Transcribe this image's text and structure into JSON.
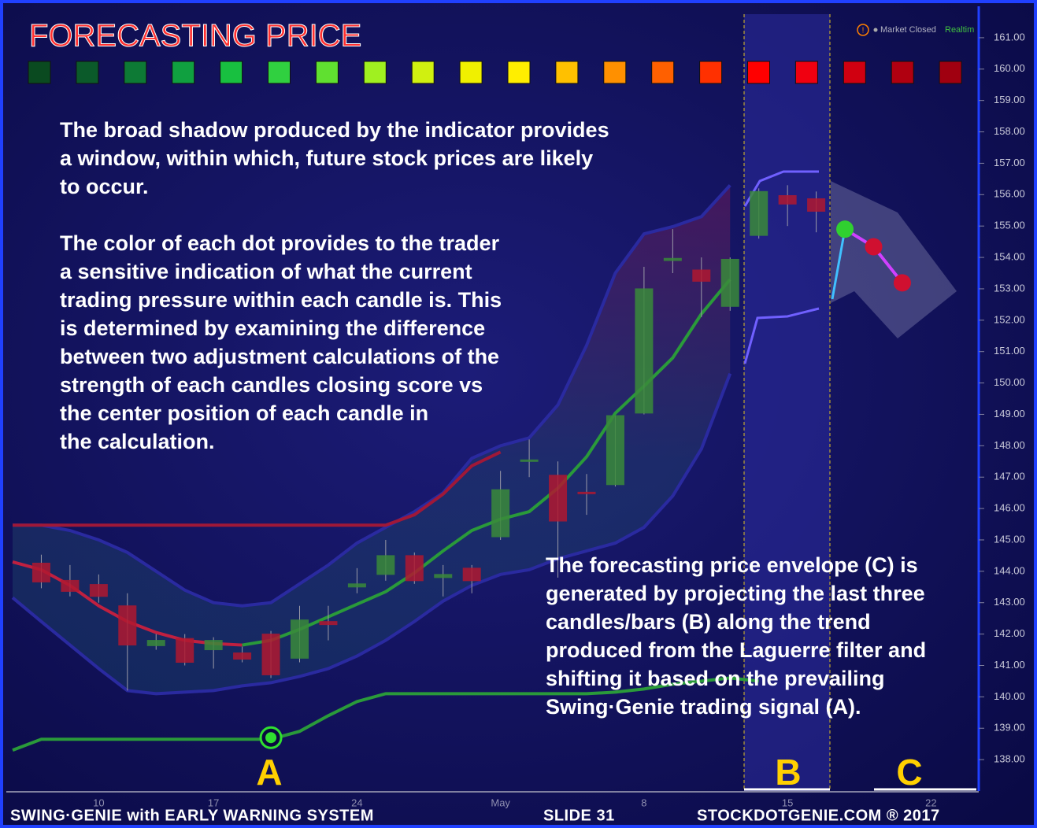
{
  "chart_data": {
    "type": "candlestick",
    "title": "FORECASTING PRICE",
    "status": {
      "icon": "!",
      "text": "Market Closed",
      "mode": "Realtim"
    },
    "dot_colors": [
      "#0a4a20",
      "#0b5a2a",
      "#0d7a35",
      "#10a040",
      "#18c040",
      "#30d040",
      "#60e030",
      "#a0f020",
      "#d0f010",
      "#f0f000",
      "#ffee00",
      "#ffc000",
      "#ff9000",
      "#ff6000",
      "#ff3000",
      "#ff0000",
      "#f00010",
      "#d00010",
      "#b00010",
      "#a00010"
    ],
    "paragraphs": [
      [
        "The broad shadow produced by the indicator provides",
        "a window, within which, future stock prices are likely",
        "to occur."
      ],
      [
        "The color of each dot provides to the trader",
        "a sensitive indication of what the current",
        "trading pressure within each candle is.  This",
        "is determined by examining the difference",
        "between two adjustment calculations of the",
        "strength of each candles closing score vs",
        "the center position of each candle in",
        "the calculation."
      ],
      [
        "The forecasting price envelope (C) is",
        "generated by projecting the last three",
        "candles/bars (B) along the trend",
        "produced from the Laguerre filter and",
        "shifting it based on the prevailing",
        "Swing·Genie trading signal (A)."
      ]
    ],
    "markers": {
      "signal": "A",
      "last_bars": "B",
      "envelope": "C"
    },
    "footer": {
      "left": "SWING·GENIE with  EARLY WARNING SYSTEM",
      "middle": "SLIDE 31",
      "right": "STOCKDOTGENIE.COM ® 2017"
    },
    "categories": [
      null,
      null,
      null,
      "10",
      null,
      null,
      null,
      "17",
      null,
      null,
      null,
      null,
      "24",
      null,
      null,
      null,
      null,
      "May",
      null,
      null,
      null,
      null,
      "8",
      null,
      null,
      null,
      null,
      "15",
      null,
      null,
      null,
      null,
      "22"
    ],
    "open": [
      null,
      144.26,
      143.71,
      143.58,
      142.9,
      141.63,
      141.86,
      141.5,
      141.4,
      142.0,
      141.23,
      142.4,
      143.5,
      143.9,
      144.5,
      143.8,
      144.1,
      145.1,
      147.5,
      147.06,
      146.52,
      146.76,
      149.04,
      153.9,
      153.6,
      152.44,
      154.7,
      155.97,
      155.87,
      null,
      null,
      null,
      null
    ],
    "high": [
      null,
      144.53,
      144.2,
      143.9,
      143.3,
      142.0,
      142.0,
      141.9,
      141.6,
      142.1,
      142.9,
      142.9,
      144.1,
      145.0,
      144.6,
      144.2,
      144.2,
      147.2,
      148.2,
      147.5,
      147.1,
      148.96,
      153.7,
      154.9,
      154.0,
      154.0,
      156.2,
      156.3,
      156.1,
      null,
      null,
      null,
      null
    ],
    "low": [
      null,
      143.46,
      143.2,
      143.0,
      140.2,
      141.5,
      141.0,
      140.9,
      141.1,
      140.6,
      141.1,
      141.8,
      143.3,
      143.7,
      143.6,
      143.2,
      143.3,
      145.0,
      147.0,
      143.8,
      145.8,
      146.7,
      149.0,
      153.5,
      152.1,
      152.3,
      154.6,
      155.0,
      154.8,
      null,
      null,
      null,
      null
    ],
    "close": [
      null,
      143.66,
      143.36,
      143.2,
      141.65,
      141.8,
      141.1,
      141.8,
      141.2,
      140.7,
      142.45,
      142.3,
      143.6,
      144.5,
      143.7,
      143.9,
      143.7,
      146.6,
      147.55,
      145.6,
      146.48,
      148.96,
      153.0,
      153.97,
      153.24,
      153.94,
      156.1,
      155.7,
      155.47,
      null,
      null,
      null,
      null
    ],
    "up_color": "#3a8a3a",
    "down_color": "#b01830",
    "lines": [
      {
        "color": "#2a2aa0",
        "values": [
          145.47,
          145.47,
          145.3,
          145.0,
          144.6,
          144.0,
          143.4,
          143.0,
          142.9,
          143.0,
          143.6,
          144.2,
          144.9,
          145.4,
          145.9,
          146.5,
          147.6,
          148.0,
          148.25,
          149.3,
          151.2,
          153.5,
          154.75,
          154.98,
          155.3,
          156.3,
          null,
          null,
          null,
          null,
          null,
          null,
          null
        ]
      },
      {
        "color": "#2a2aa0",
        "values": [
          143.16,
          142.4,
          141.65,
          140.9,
          140.2,
          140.1,
          140.15,
          140.2,
          140.35,
          140.45,
          140.65,
          140.9,
          141.3,
          141.8,
          142.4,
          143.05,
          143.55,
          143.9,
          144.05,
          144.4,
          144.65,
          144.9,
          145.4,
          146.4,
          147.9,
          150.3,
          null,
          null,
          null,
          null,
          null,
          null,
          null
        ]
      },
      {
        "color": "#a01838",
        "values": [
          145.47,
          145.47,
          145.47,
          145.47,
          145.47,
          145.47,
          145.47,
          145.47,
          145.47,
          145.47,
          145.47,
          145.47,
          145.47,
          145.47,
          145.8,
          146.46,
          147.36,
          147.8,
          null,
          null,
          null,
          null,
          null,
          null,
          null,
          null,
          null,
          null,
          null,
          null,
          null,
          null,
          null
        ]
      },
      {
        "color": "#c02040",
        "values": [
          144.3,
          144.05,
          143.55,
          142.9,
          142.4,
          142.05,
          141.8,
          141.7,
          141.65,
          null,
          null,
          null,
          null,
          null,
          null,
          null,
          null,
          null,
          null,
          null,
          null,
          null,
          null,
          null,
          null,
          null,
          null,
          null,
          null,
          null,
          null,
          null,
          null
        ]
      },
      {
        "color": "#2a9a3a",
        "values": [
          null,
          null,
          null,
          null,
          null,
          null,
          null,
          null,
          141.65,
          141.8,
          142.15,
          142.55,
          142.95,
          143.35,
          143.95,
          144.65,
          145.3,
          145.66,
          145.9,
          146.65,
          147.65,
          149.04,
          149.9,
          150.8,
          152.2,
          153.3,
          null,
          null,
          null,
          null,
          null,
          null,
          null
        ]
      },
      {
        "color": "#2a9a3a",
        "values": [
          138.3,
          138.65,
          138.65,
          138.65,
          138.65,
          138.65,
          138.65,
          138.65,
          138.65,
          138.65,
          138.9,
          139.4,
          139.85,
          140.1,
          140.1,
          140.1,
          140.1,
          140.1,
          140.1,
          140.1,
          140.1,
          140.15,
          140.25,
          140.4,
          140.5,
          140.6,
          140.5,
          null,
          null,
          null,
          null,
          null,
          null
        ]
      }
    ],
    "signal": {
      "index": 9,
      "value": 138.7,
      "color": "#30e030"
    },
    "forecast": {
      "values": [
        null,
        null,
        null,
        null,
        null,
        null,
        null,
        null,
        null,
        null,
        null,
        null,
        null,
        null,
        null,
        null,
        null,
        null,
        null,
        null,
        null,
        null,
        null,
        null,
        null,
        null,
        null,
        null,
        null,
        154.9,
        154.34,
        153.19,
        null
      ],
      "colors": [
        null,
        null,
        null,
        null,
        null,
        null,
        null,
        null,
        null,
        null,
        null,
        null,
        null,
        null,
        null,
        null,
        null,
        null,
        null,
        null,
        null,
        null,
        null,
        null,
        null,
        null,
        null,
        null,
        null,
        "#30d030",
        "#d01030",
        "#d01030",
        null
      ]
    },
    "ylim": [
      137,
      161.75
    ],
    "yticks": [
      {
        "value": 161,
        "label": "161.00"
      },
      {
        "value": 160,
        "label": "160.00"
      },
      {
        "value": 159,
        "label": "159.00"
      },
      {
        "value": 158,
        "label": "158.00"
      },
      {
        "value": 157,
        "label": "157.00"
      },
      {
        "value": 156,
        "label": "156.00"
      },
      {
        "value": 155,
        "label": "155.00"
      },
      {
        "value": 154,
        "label": "154.00"
      },
      {
        "value": 153,
        "label": "153.00"
      },
      {
        "value": 152,
        "label": "152.00"
      },
      {
        "value": 151,
        "label": "151.00"
      },
      {
        "value": 150,
        "label": "150.00"
      },
      {
        "value": 149,
        "label": "149.00"
      },
      {
        "value": 148,
        "label": "148.00"
      },
      {
        "value": 147,
        "label": "147.00"
      },
      {
        "value": 146,
        "label": "146.00"
      },
      {
        "value": 145,
        "label": "145.00"
      },
      {
        "value": 144,
        "label": "144.00"
      },
      {
        "value": 143,
        "label": "143.00"
      },
      {
        "value": 142,
        "label": "142.00"
      },
      {
        "value": 141,
        "label": "141.00"
      },
      {
        "value": 140,
        "label": "140.00"
      },
      {
        "value": 139,
        "label": "139.00"
      },
      {
        "value": 138,
        "label": "138.00"
      }
    ]
  }
}
